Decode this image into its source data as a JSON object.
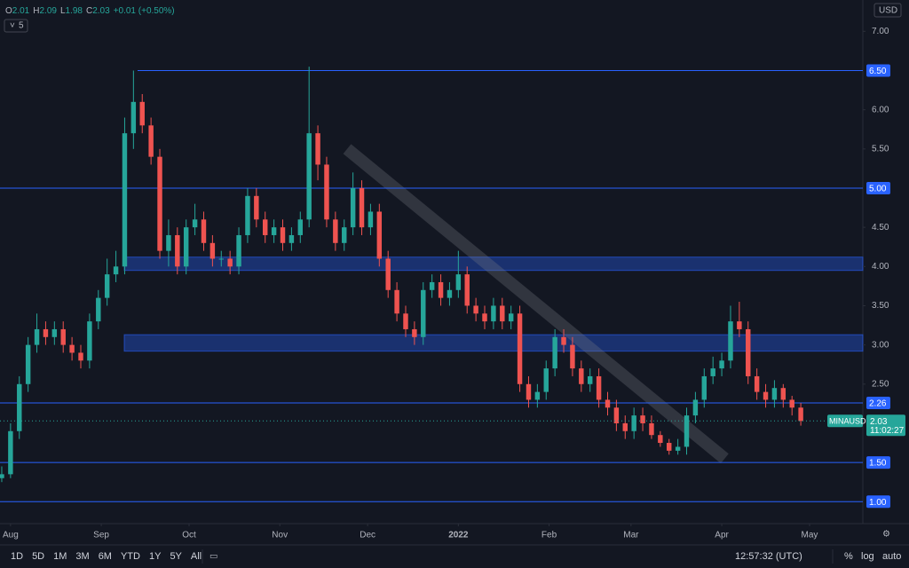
{
  "header": {
    "open_label": "O",
    "open": "2.01",
    "high_label": "H",
    "high": "2.09",
    "low_label": "L",
    "low": "1.98",
    "close_label": "C",
    "close": "2.03",
    "change": "+0.01 (+0.50%)",
    "indicators": "5",
    "currency": "USD"
  },
  "chart_data": {
    "type": "candlestick",
    "symbol": "MINAUSD",
    "up_color": "#26a69a",
    "down_color": "#ef5350",
    "xlim": [
      -3.6,
      291.2
    ],
    "xticks": [
      {
        "value": 0,
        "label": "Aug"
      },
      {
        "value": 31,
        "label": "Sep"
      },
      {
        "value": 61,
        "label": "Oct"
      },
      {
        "value": 92,
        "label": "Nov"
      },
      {
        "value": 122,
        "label": "Dec"
      },
      {
        "value": 153,
        "label": "2022"
      },
      {
        "value": 184,
        "label": "Feb"
      },
      {
        "value": 212,
        "label": "Mar"
      },
      {
        "value": 243,
        "label": "Apr"
      },
      {
        "value": 273,
        "label": "May"
      }
    ],
    "ylim": [
      0.72,
      7.4
    ],
    "yticks": [
      {
        "value": 7,
        "label": "7.00"
      },
      {
        "value": 6,
        "label": "6.00"
      },
      {
        "value": 5.5,
        "label": "5.50"
      },
      {
        "value": 4.5,
        "label": "4.50"
      },
      {
        "value": 4,
        "label": "4.00"
      },
      {
        "value": 3.5,
        "label": "3.50"
      },
      {
        "value": 3,
        "label": "3.00"
      },
      {
        "value": 2.5,
        "label": "2.50"
      }
    ],
    "levels": [
      {
        "value": 6.5,
        "label": "6.50"
      },
      {
        "value": 5,
        "label": "5.00"
      },
      {
        "value": 2.26,
        "label": "2.26"
      },
      {
        "value": 1.5,
        "label": "1.50"
      },
      {
        "value": 1,
        "label": "1.00"
      }
    ],
    "level_color": "#2962ff",
    "zones": [
      [
        3.95,
        4.12
      ],
      [
        2.92,
        3.13
      ]
    ],
    "channel": {
      "x": [
        115,
        244
      ],
      "y": [
        5.5,
        1.55
      ]
    },
    "last": {
      "value": 2.03,
      "label": "2.03",
      "countdown": "11:02:27"
    },
    "x": [
      -3,
      0,
      3,
      6,
      9,
      12,
      15,
      18,
      21,
      24,
      27,
      30,
      33,
      36,
      39,
      42,
      45,
      48,
      51,
      54,
      57,
      60,
      63,
      66,
      69,
      72,
      75,
      78,
      81,
      84,
      87,
      90,
      93,
      96,
      99,
      102,
      105,
      108,
      111,
      114,
      117,
      120,
      123,
      126,
      129,
      132,
      135,
      138,
      141,
      144,
      147,
      150,
      153,
      156,
      159,
      162,
      165,
      168,
      171,
      174,
      177,
      180,
      183,
      186,
      189,
      192,
      195,
      198,
      201,
      204,
      207,
      210,
      213,
      216,
      219,
      222,
      225,
      228,
      231,
      234,
      237,
      240,
      243,
      246,
      249,
      252,
      255,
      258,
      261,
      264,
      267,
      270
    ],
    "open": [
      1.3,
      1.35,
      1.9,
      2.5,
      3.0,
      3.2,
      3.1,
      3.2,
      3.0,
      2.9,
      2.8,
      3.3,
      3.6,
      3.9,
      4.0,
      5.7,
      6.1,
      5.8,
      5.4,
      4.2,
      4.4,
      4.0,
      4.5,
      4.6,
      4.3,
      4.1,
      4.1,
      4.0,
      4.4,
      4.9,
      4.6,
      4.4,
      4.5,
      4.3,
      4.4,
      4.6,
      5.7,
      5.3,
      4.6,
      4.3,
      4.5,
      5.0,
      4.5,
      4.7,
      4.1,
      3.7,
      3.4,
      3.2,
      3.1,
      3.7,
      3.8,
      3.6,
      3.7,
      3.9,
      3.5,
      3.4,
      3.3,
      3.5,
      3.3,
      3.4,
      2.5,
      2.3,
      2.4,
      2.7,
      3.1,
      3.0,
      2.7,
      2.5,
      2.6,
      2.3,
      2.2,
      2.0,
      1.9,
      2.1,
      2.0,
      1.85,
      1.75,
      1.65,
      1.7,
      2.1,
      2.3,
      2.6,
      2.7,
      2.8,
      3.3,
      3.2,
      2.6,
      2.4,
      2.3,
      2.45,
      2.3,
      2.2
    ],
    "high": [
      1.45,
      2.0,
      2.6,
      3.1,
      3.4,
      3.3,
      3.3,
      3.3,
      3.1,
      3.0,
      3.4,
      3.7,
      4.1,
      4.2,
      5.9,
      6.5,
      6.2,
      5.9,
      5.5,
      4.6,
      4.5,
      4.6,
      4.8,
      4.7,
      4.4,
      4.2,
      4.2,
      4.5,
      5.0,
      5.0,
      4.7,
      4.6,
      4.6,
      4.5,
      4.7,
      6.55,
      5.8,
      5.4,
      4.7,
      4.6,
      5.2,
      5.1,
      4.8,
      4.8,
      4.2,
      3.8,
      3.5,
      3.3,
      3.8,
      3.9,
      3.9,
      3.8,
      4.2,
      4.0,
      3.6,
      3.5,
      3.6,
      3.6,
      3.5,
      3.5,
      2.6,
      2.5,
      2.8,
      3.2,
      3.2,
      3.1,
      2.8,
      2.7,
      2.7,
      2.4,
      2.3,
      2.1,
      2.2,
      2.2,
      2.1,
      1.9,
      1.8,
      1.8,
      2.2,
      2.4,
      2.7,
      2.85,
      2.9,
      3.5,
      3.55,
      3.3,
      2.7,
      2.5,
      2.55,
      2.5,
      2.35,
      2.26
    ],
    "low": [
      1.25,
      1.3,
      1.8,
      2.4,
      2.9,
      3.0,
      3.0,
      2.9,
      2.8,
      2.7,
      2.7,
      3.2,
      3.5,
      3.8,
      3.9,
      5.5,
      5.7,
      5.3,
      4.1,
      4.0,
      3.9,
      3.9,
      4.4,
      4.2,
      4.0,
      4.0,
      3.9,
      3.9,
      4.3,
      4.5,
      4.3,
      4.3,
      4.2,
      4.2,
      4.3,
      4.5,
      5.1,
      4.5,
      4.2,
      4.2,
      4.4,
      4.4,
      4.4,
      4.0,
      3.6,
      3.3,
      3.1,
      3.0,
      3.0,
      3.6,
      3.5,
      3.5,
      3.6,
      3.4,
      3.3,
      3.2,
      3.2,
      3.2,
      3.2,
      2.4,
      2.2,
      2.2,
      2.3,
      2.6,
      2.9,
      2.6,
      2.4,
      2.4,
      2.2,
      2.1,
      1.9,
      1.8,
      1.8,
      1.9,
      1.8,
      1.7,
      1.6,
      1.6,
      1.6,
      2.0,
      2.2,
      2.5,
      2.6,
      2.7,
      3.1,
      2.5,
      2.3,
      2.2,
      2.2,
      2.2,
      2.1,
      1.97
    ],
    "close": [
      1.35,
      1.9,
      2.5,
      3.0,
      3.2,
      3.1,
      3.2,
      3.0,
      2.9,
      2.8,
      3.3,
      3.6,
      3.9,
      4.0,
      5.7,
      6.1,
      5.8,
      5.4,
      4.2,
      4.4,
      4.0,
      4.5,
      4.6,
      4.3,
      4.1,
      4.1,
      4.0,
      4.4,
      4.9,
      4.6,
      4.4,
      4.5,
      4.3,
      4.4,
      4.6,
      5.7,
      5.3,
      4.6,
      4.3,
      4.5,
      5.0,
      4.5,
      4.7,
      4.1,
      3.7,
      3.4,
      3.2,
      3.1,
      3.7,
      3.8,
      3.6,
      3.7,
      3.9,
      3.5,
      3.4,
      3.3,
      3.5,
      3.3,
      3.4,
      2.5,
      2.3,
      2.4,
      2.7,
      3.1,
      3.0,
      2.7,
      2.5,
      2.6,
      2.3,
      2.2,
      2.0,
      1.9,
      2.1,
      2.0,
      1.85,
      1.75,
      1.65,
      1.7,
      2.1,
      2.3,
      2.6,
      2.7,
      2.8,
      3.3,
      3.2,
      2.6,
      2.4,
      2.3,
      2.45,
      2.3,
      2.2,
      2.03
    ]
  },
  "toolbar": {
    "ranges": [
      "1D",
      "5D",
      "1M",
      "3M",
      "6M",
      "YTD",
      "1Y",
      "5Y",
      "All"
    ],
    "time": "12:57:32 (UTC)",
    "percent": "%",
    "log": "log",
    "auto": "auto"
  }
}
